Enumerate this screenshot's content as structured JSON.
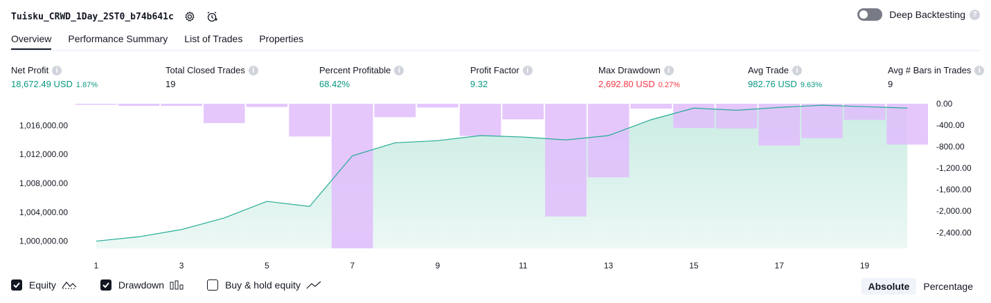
{
  "header": {
    "title": "Tuisku_CRWD_1Day_2ST0_b74b641c",
    "settings_icon": "gear-icon",
    "alert_icon": "alarm-clock-icon"
  },
  "deep_backtesting": {
    "label": "Deep Backtesting",
    "enabled": false,
    "help": "?"
  },
  "tabs": [
    {
      "label": "Overview",
      "active": true
    },
    {
      "label": "Performance Summary",
      "active": false
    },
    {
      "label": "List of Trades",
      "active": false
    },
    {
      "label": "Properties",
      "active": false
    }
  ],
  "metrics": [
    {
      "label": "Net Profit",
      "value": "18,672.49 USD",
      "sub": "1.87%",
      "color": "g"
    },
    {
      "label": "Total Closed Trades",
      "value": "19",
      "sub": "",
      "color": "k"
    },
    {
      "label": "Percent Profitable",
      "value": "68.42%",
      "sub": "",
      "color": "g"
    },
    {
      "label": "Profit Factor",
      "value": "9.32",
      "sub": "",
      "color": "g"
    },
    {
      "label": "Max Drawdown",
      "value": "2,692.80 USD",
      "sub": "0.27%",
      "color": "r"
    },
    {
      "label": "Avg Trade",
      "value": "982.76 USD",
      "sub": "9.63%",
      "color": "g"
    },
    {
      "label": "Avg # Bars in Trades",
      "value": "9",
      "sub": "",
      "color": "k"
    }
  ],
  "chart_data": {
    "type": "line",
    "x": [
      1,
      2,
      3,
      4,
      5,
      6,
      7,
      8,
      9,
      10,
      11,
      12,
      13,
      14,
      15,
      16,
      17,
      18,
      19,
      20
    ],
    "x_ticks": [
      "1",
      "3",
      "5",
      "7",
      "9",
      "11",
      "13",
      "15",
      "17",
      "19"
    ],
    "y_left_ticks": [
      "1,016,000.00",
      "1,012,000.00",
      "1,008,000.00",
      "1,004,000.00",
      "1,000,000.00"
    ],
    "y_right_ticks": [
      "0.00",
      "-400.00",
      "-800.00",
      "-1,200.00",
      "-1,600.00",
      "-2,000.00",
      "-2,400.00"
    ],
    "ylim_left": [
      999000,
      1019000
    ],
    "ylim_right": [
      -2692.8,
      0
    ],
    "series": [
      {
        "name": "Equity",
        "values": [
          1000000,
          1000600,
          1001600,
          1003200,
          1005500,
          1004800,
          1011800,
          1013600,
          1013900,
          1014600,
          1014400,
          1014000,
          1014600,
          1016800,
          1018400,
          1018100,
          1018500,
          1018800,
          1018600,
          1018400
        ]
      },
      {
        "name": "Drawdown",
        "values": [
          0,
          -40,
          -40,
          -360,
          -60,
          -610,
          -2692.8,
          -250,
          -70,
          -600,
          -290,
          -2100,
          -1370,
          -90,
          -450,
          -460,
          -780,
          -640,
          -300,
          -760
        ]
      }
    ],
    "colors": {
      "equity_line": "#22ab94",
      "equity_fill": "#c8ebe2",
      "drawdown": "#e1bdfc"
    }
  },
  "legend": [
    {
      "label": "Equity",
      "checked": true
    },
    {
      "label": "Drawdown",
      "checked": true
    },
    {
      "label": "Buy & hold equity",
      "checked": false
    }
  ],
  "modes": [
    {
      "label": "Absolute",
      "active": true
    },
    {
      "label": "Percentage",
      "active": false
    }
  ]
}
